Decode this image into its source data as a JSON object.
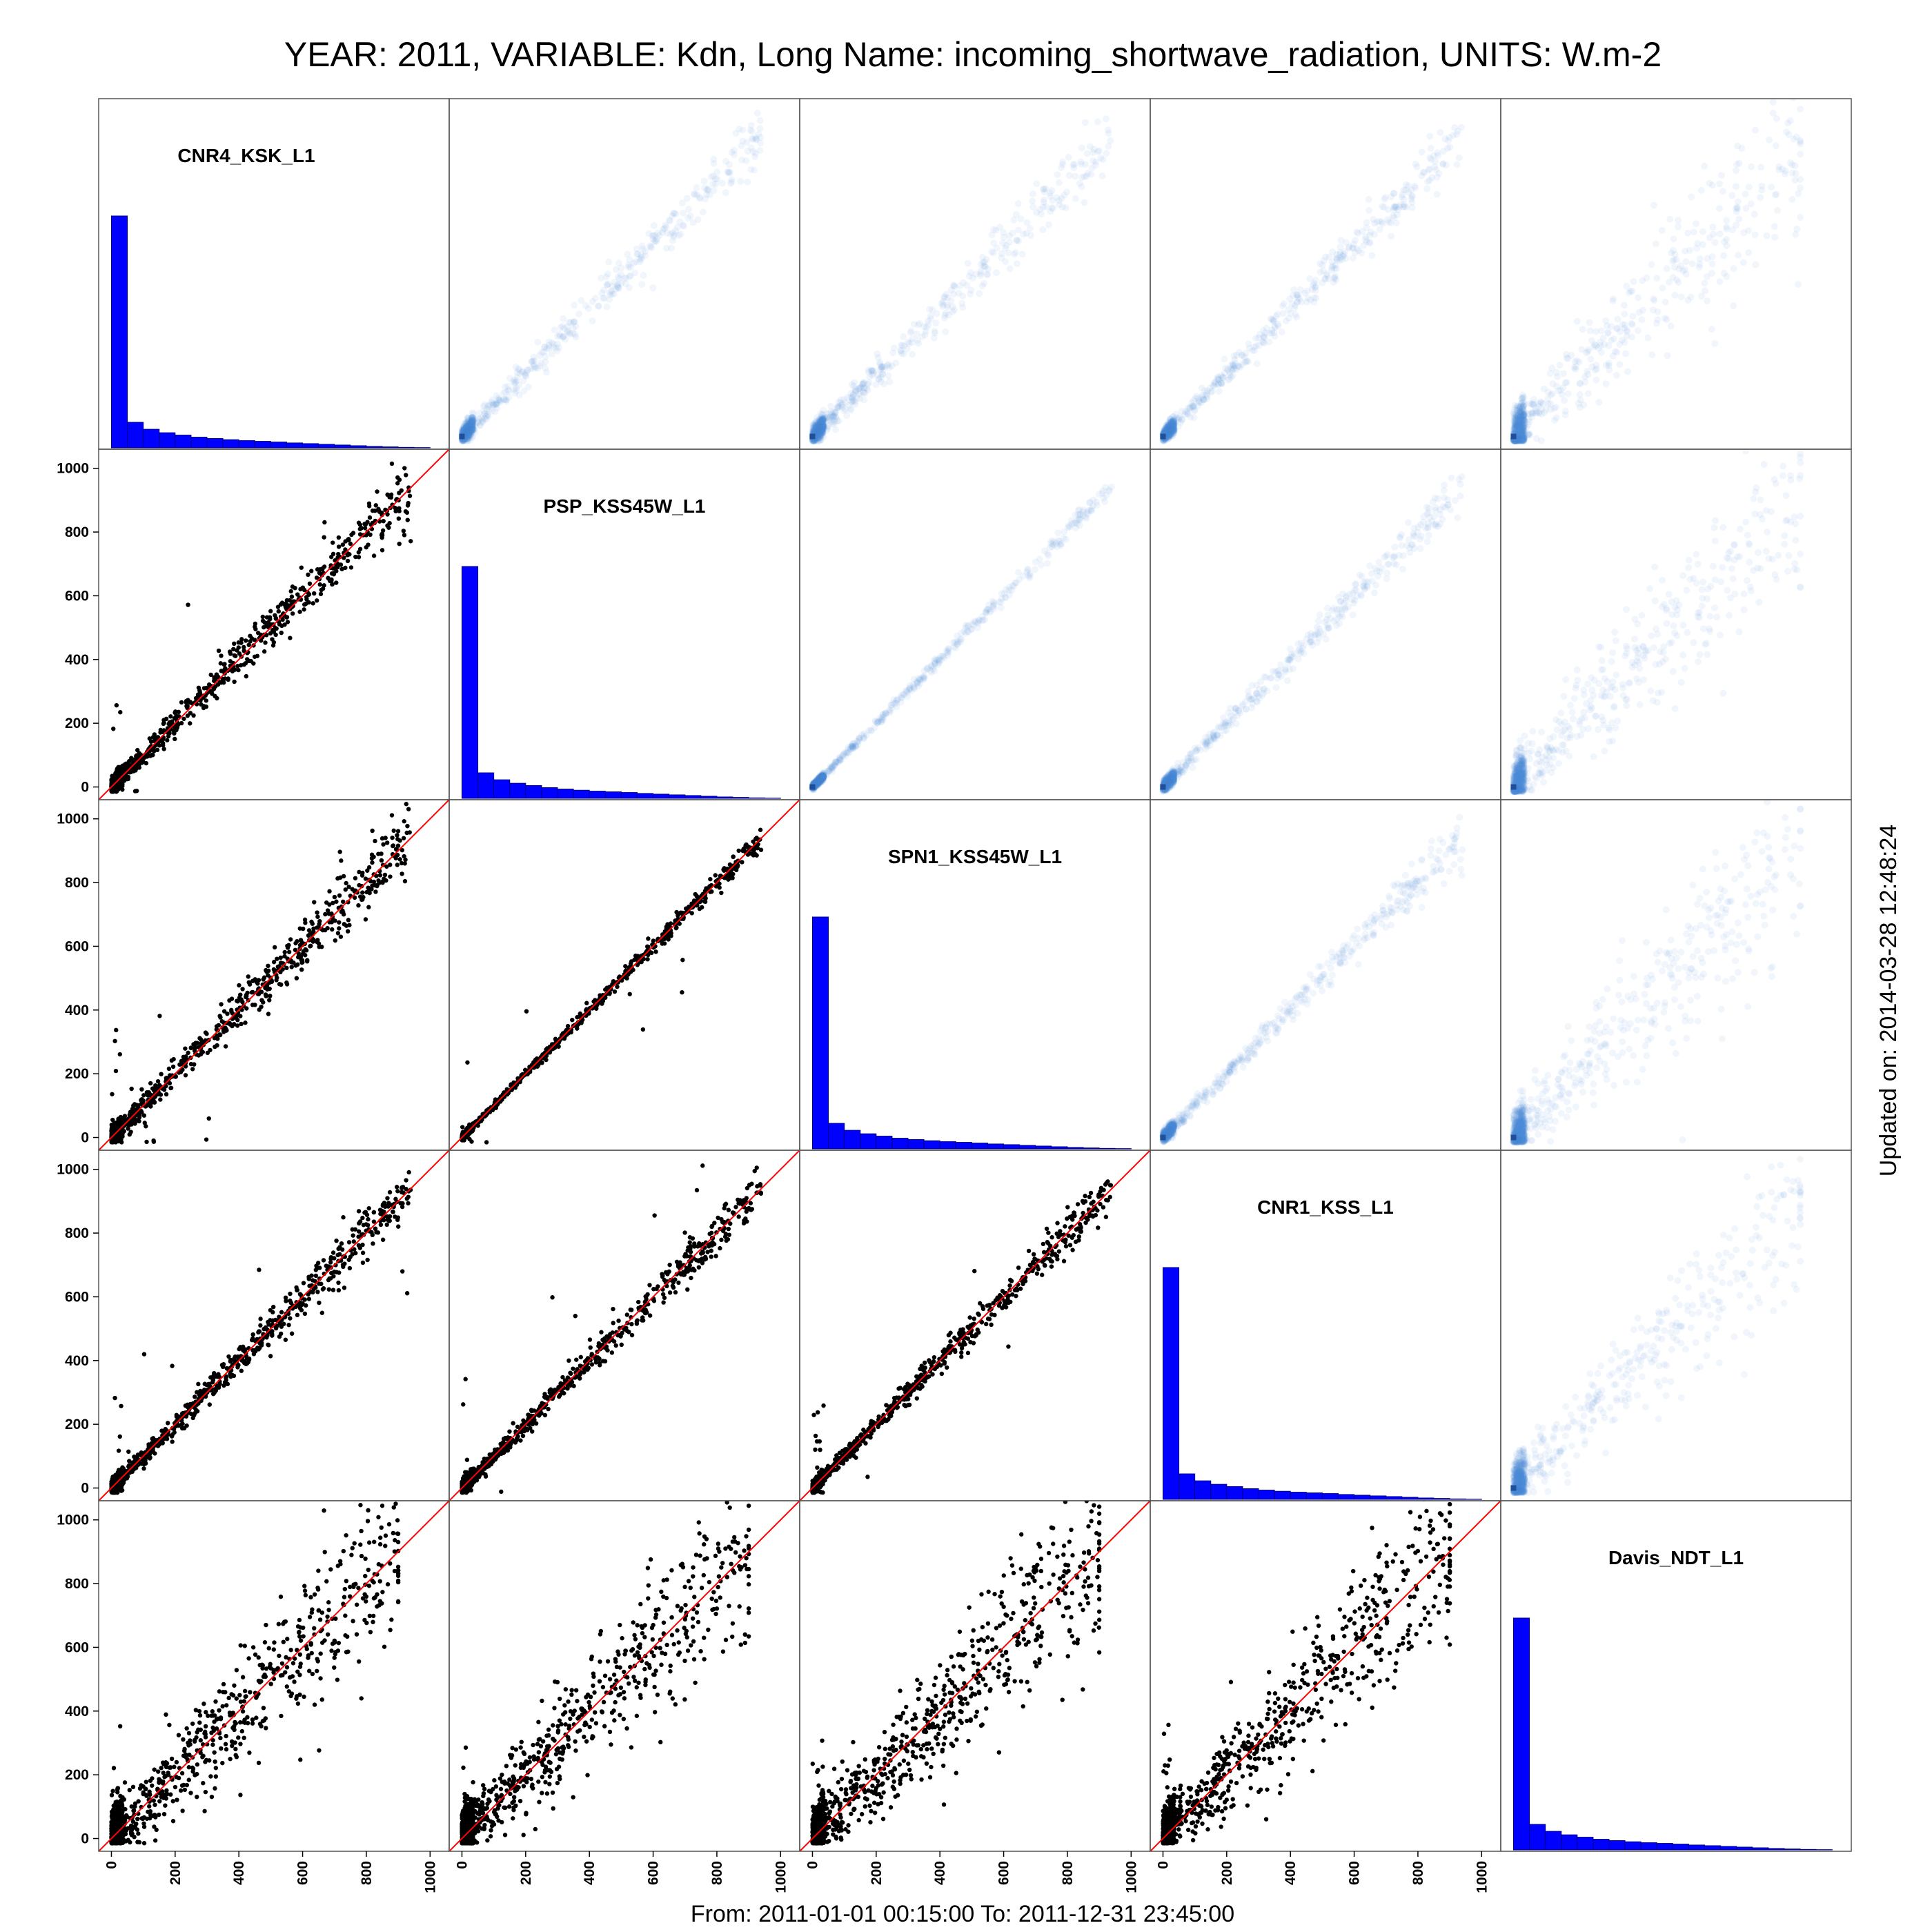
{
  "title": "YEAR: 2011, VARIABLE: Kdn, Long Name: incoming_shortwave_radiation, UNITS: W.m-2",
  "bottom_caption": "From: 2011-01-01 00:15:00 To: 2011-12-31 23:45:00",
  "side_caption": "Updated on: 2014-03-28 12:48:24",
  "colors": {
    "histogram_fill": "#0000ff",
    "histogram_edge": "#000080",
    "scatter_point": "#000000",
    "identity_line": "#ff0000",
    "density_cloud": "#4a8fd4",
    "density_origin": "#1f4e9a",
    "panel_border": "#555555"
  },
  "chart_data": {
    "type": "scatter",
    "layout": "scatterplot-matrix",
    "grid": false,
    "panel_types": {
      "diagonal": "histogram",
      "lower": "scatter",
      "upper": "density-scatter"
    },
    "variables": [
      "CNR4_KSK_L1",
      "PSP_KSS45W_L1",
      "SPN1_KSS45W_L1",
      "CNR1_KSS_L1",
      "Davis_NDT_L1"
    ],
    "axis_range": [
      -40,
      1060
    ],
    "axis_ticks": [
      0,
      200,
      400,
      600,
      800,
      1000
    ],
    "reference_line": "y = x",
    "histogram_bin_edges": [
      0,
      50,
      100,
      150,
      200,
      250,
      300,
      350,
      400,
      450,
      500,
      550,
      600,
      650,
      700,
      750,
      800,
      850,
      900,
      950,
      1000
    ],
    "histograms": [
      {
        "variable": "CNR4_KSK_L1",
        "counts": [
          100,
          11,
          8,
          6.5,
          5.5,
          4.6,
          4,
          3.5,
          3.1,
          2.8,
          2.5,
          2.1,
          1.8,
          1.5,
          1.2,
          0.9,
          0.6,
          0.4,
          0.2,
          0.1
        ]
      },
      {
        "variable": "PSP_KSS45W_L1",
        "counts": [
          100,
          11,
          8,
          6.5,
          5.5,
          4.6,
          4,
          3.5,
          3.1,
          2.8,
          2.5,
          2.1,
          1.8,
          1.5,
          1.2,
          0.9,
          0.6,
          0.4,
          0.2,
          0.1
        ]
      },
      {
        "variable": "SPN1_KSS45W_L1",
        "counts": [
          100,
          11,
          8,
          6.5,
          5.5,
          4.6,
          4,
          3.5,
          3.1,
          2.8,
          2.5,
          2.1,
          1.8,
          1.5,
          1.2,
          0.9,
          0.6,
          0.4,
          0.2,
          0.1
        ]
      },
      {
        "variable": "CNR1_KSS_L1",
        "counts": [
          100,
          11,
          8,
          6.5,
          5.5,
          4.6,
          4,
          3.5,
          3.1,
          2.8,
          2.5,
          2.1,
          1.8,
          1.5,
          1.2,
          0.9,
          0.6,
          0.4,
          0.2,
          0.1
        ]
      },
      {
        "variable": "Davis_NDT_L1",
        "counts": [
          100,
          11,
          8,
          6.5,
          5.5,
          4.6,
          4,
          3.5,
          3.1,
          2.8,
          2.5,
          2.1,
          1.8,
          1.5,
          1.2,
          0.9,
          0.6,
          0.4,
          0.2,
          0.1
        ]
      }
    ],
    "pair_spread": [
      [
        0,
        36,
        40,
        30,
        110
      ],
      [
        36,
        0,
        12,
        26,
        110
      ],
      [
        40,
        12,
        0,
        26,
        110
      ],
      [
        30,
        26,
        26,
        0,
        105
      ],
      [
        110,
        110,
        110,
        105,
        0
      ]
    ],
    "pair_max": [
      [
        0,
        960,
        960,
        960,
        900
      ],
      [
        960,
        0,
        960,
        1000,
        900
      ],
      [
        960,
        960,
        0,
        960,
        900
      ],
      [
        960,
        1000,
        960,
        0,
        900
      ],
      [
        900,
        900,
        900,
        900,
        0
      ]
    ],
    "points_per_scatter_panel": 1500
  }
}
